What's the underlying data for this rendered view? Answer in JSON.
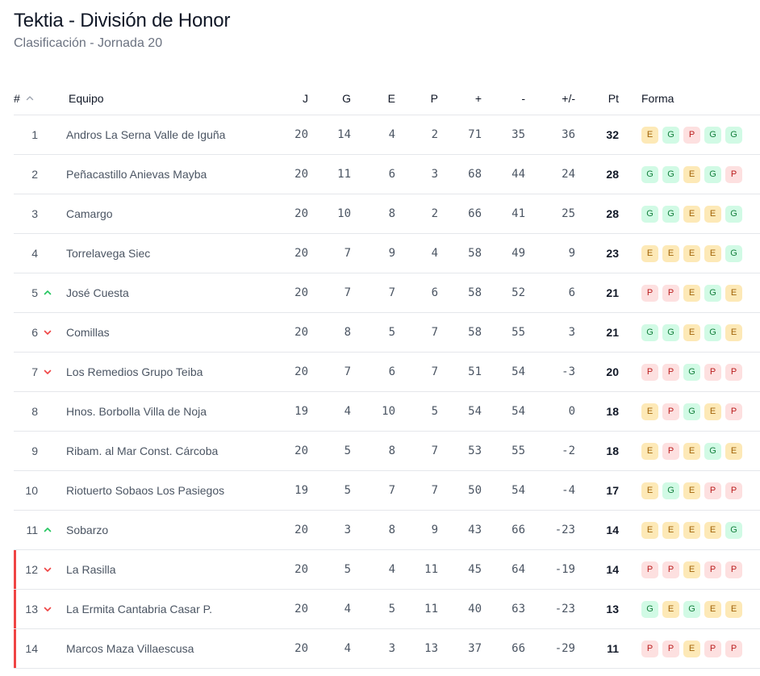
{
  "header": {
    "title": "Tektia - División de Honor",
    "subtitle": "Clasificación - Jornada 20"
  },
  "columns": {
    "pos": "#",
    "team": "Equipo",
    "j": "J",
    "g": "G",
    "e": "E",
    "p": "P",
    "gf": "+",
    "ga": "-",
    "diff": "+/-",
    "pts": "Pt",
    "form": "Forma"
  },
  "sort_icon": "chevron-up-icon",
  "colors": {
    "win_bg": "#d1fae5",
    "win_fg": "#15803d",
    "draw_bg": "#fde9b7",
    "draw_fg": "#a16207",
    "loss_bg": "#fde0e0",
    "loss_fg": "#b91c1c",
    "trend_up": "#22c55e",
    "trend_down": "#ef4444",
    "relegation_marker": "#ef4444"
  },
  "rows": [
    {
      "pos": "1",
      "trend": "",
      "team": "Andros La Serna Valle de Iguña",
      "j": "20",
      "g": "14",
      "e": "4",
      "p": "2",
      "gf": "71",
      "ga": "35",
      "diff": "36",
      "pts": "32",
      "form": [
        "E",
        "G",
        "P",
        "G",
        "G"
      ],
      "relegation": false
    },
    {
      "pos": "2",
      "trend": "",
      "team": "Peñacastillo Anievas Mayba",
      "j": "20",
      "g": "11",
      "e": "6",
      "p": "3",
      "gf": "68",
      "ga": "44",
      "diff": "24",
      "pts": "28",
      "form": [
        "G",
        "G",
        "E",
        "G",
        "P"
      ],
      "relegation": false
    },
    {
      "pos": "3",
      "trend": "",
      "team": "Camargo",
      "j": "20",
      "g": "10",
      "e": "8",
      "p": "2",
      "gf": "66",
      "ga": "41",
      "diff": "25",
      "pts": "28",
      "form": [
        "G",
        "G",
        "E",
        "E",
        "G"
      ],
      "relegation": false
    },
    {
      "pos": "4",
      "trend": "",
      "team": "Torrelavega Siec",
      "j": "20",
      "g": "7",
      "e": "9",
      "p": "4",
      "gf": "58",
      "ga": "49",
      "diff": "9",
      "pts": "23",
      "form": [
        "E",
        "E",
        "E",
        "E",
        "G"
      ],
      "relegation": false
    },
    {
      "pos": "5",
      "trend": "up",
      "team": "José Cuesta",
      "j": "20",
      "g": "7",
      "e": "7",
      "p": "6",
      "gf": "58",
      "ga": "52",
      "diff": "6",
      "pts": "21",
      "form": [
        "P",
        "P",
        "E",
        "G",
        "E"
      ],
      "relegation": false
    },
    {
      "pos": "6",
      "trend": "down",
      "team": "Comillas",
      "j": "20",
      "g": "8",
      "e": "5",
      "p": "7",
      "gf": "58",
      "ga": "55",
      "diff": "3",
      "pts": "21",
      "form": [
        "G",
        "G",
        "E",
        "G",
        "E"
      ],
      "relegation": false
    },
    {
      "pos": "7",
      "trend": "down",
      "team": "Los Remedios Grupo Teiba",
      "j": "20",
      "g": "7",
      "e": "6",
      "p": "7",
      "gf": "51",
      "ga": "54",
      "diff": "-3",
      "pts": "20",
      "form": [
        "P",
        "P",
        "G",
        "P",
        "P"
      ],
      "relegation": false
    },
    {
      "pos": "8",
      "trend": "",
      "team": "Hnos. Borbolla Villa de Noja",
      "j": "19",
      "g": "4",
      "e": "10",
      "p": "5",
      "gf": "54",
      "ga": "54",
      "diff": "0",
      "pts": "18",
      "form": [
        "E",
        "P",
        "G",
        "E",
        "P"
      ],
      "relegation": false
    },
    {
      "pos": "9",
      "trend": "",
      "team": "Ribam. al Mar Const. Cárcoba",
      "j": "20",
      "g": "5",
      "e": "8",
      "p": "7",
      "gf": "53",
      "ga": "55",
      "diff": "-2",
      "pts": "18",
      "form": [
        "E",
        "P",
        "E",
        "G",
        "E"
      ],
      "relegation": false
    },
    {
      "pos": "10",
      "trend": "",
      "team": "Riotuerto Sobaos Los Pasiegos",
      "j": "19",
      "g": "5",
      "e": "7",
      "p": "7",
      "gf": "50",
      "ga": "54",
      "diff": "-4",
      "pts": "17",
      "form": [
        "E",
        "G",
        "E",
        "P",
        "P"
      ],
      "relegation": false
    },
    {
      "pos": "11",
      "trend": "up",
      "team": "Sobarzo",
      "j": "20",
      "g": "3",
      "e": "8",
      "p": "9",
      "gf": "43",
      "ga": "66",
      "diff": "-23",
      "pts": "14",
      "form": [
        "E",
        "E",
        "E",
        "E",
        "G"
      ],
      "relegation": false
    },
    {
      "pos": "12",
      "trend": "down",
      "team": "La Rasilla",
      "j": "20",
      "g": "5",
      "e": "4",
      "p": "11",
      "gf": "45",
      "ga": "64",
      "diff": "-19",
      "pts": "14",
      "form": [
        "P",
        "P",
        "E",
        "P",
        "P"
      ],
      "relegation": true
    },
    {
      "pos": "13",
      "trend": "down",
      "team": "La Ermita Cantabria Casar P.",
      "j": "20",
      "g": "4",
      "e": "5",
      "p": "11",
      "gf": "40",
      "ga": "63",
      "diff": "-23",
      "pts": "13",
      "form": [
        "G",
        "E",
        "G",
        "E",
        "E"
      ],
      "relegation": true
    },
    {
      "pos": "14",
      "trend": "",
      "team": "Marcos Maza Villaescusa",
      "j": "20",
      "g": "4",
      "e": "3",
      "p": "13",
      "gf": "37",
      "ga": "66",
      "diff": "-29",
      "pts": "11",
      "form": [
        "P",
        "P",
        "E",
        "P",
        "P"
      ],
      "relegation": true
    }
  ]
}
